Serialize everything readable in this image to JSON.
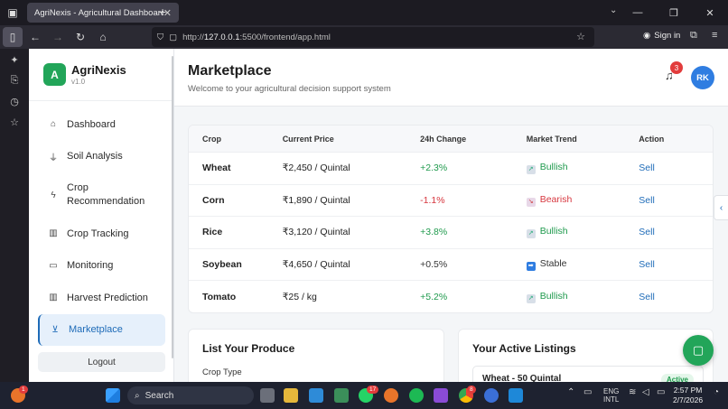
{
  "browser": {
    "tab_title": "AgriNexis - Agricultural Dashboard",
    "url_prefix": "http://",
    "url_host": "127.0.0.1",
    "url_path": ":5500/frontend/app.html",
    "signin_label": "Sign in"
  },
  "app": {
    "brand_initial": "A",
    "brand_name": "AgriNexis",
    "brand_version": "v1.0",
    "menu": [
      {
        "label": "Dashboard",
        "icon": "dashboard-icon"
      },
      {
        "label": "Soil Analysis",
        "icon": "soil-icon"
      },
      {
        "label": "Crop Recommendation",
        "icon": "lightning-icon"
      },
      {
        "label": "Crop Tracking",
        "icon": "bar-chart-icon"
      },
      {
        "label": "Monitoring",
        "icon": "camera-icon"
      },
      {
        "label": "Harvest Prediction",
        "icon": "bar-chart-icon"
      },
      {
        "label": "Marketplace",
        "icon": "cart-icon"
      }
    ],
    "logout_label": "Logout"
  },
  "header": {
    "title": "Marketplace",
    "subtitle": "Welcome to your agricultural decision support system",
    "notification_count": "3",
    "avatar_initials": "RK"
  },
  "market_table": {
    "columns": [
      "Crop",
      "Current Price",
      "24h Change",
      "Market Trend",
      "Action"
    ],
    "rows": [
      {
        "crop": "Wheat",
        "price": "₹2,450 / Quintal",
        "change": "+2.3%",
        "trend": "Bullish",
        "action": "Sell"
      },
      {
        "crop": "Corn",
        "price": "₹1,890 / Quintal",
        "change": "-1.1%",
        "trend": "Bearish",
        "action": "Sell"
      },
      {
        "crop": "Rice",
        "price": "₹3,120 / Quintal",
        "change": "+3.8%",
        "trend": "Bullish",
        "action": "Sell"
      },
      {
        "crop": "Soybean",
        "price": "₹4,650 / Quintal",
        "change": "+0.5%",
        "trend": "Stable",
        "action": "Sell"
      },
      {
        "crop": "Tomato",
        "price": "₹25 / kg",
        "change": "+5.2%",
        "trend": "Bullish",
        "action": "Sell"
      }
    ]
  },
  "list_produce": {
    "title": "List Your Produce",
    "crop_type_label": "Crop Type"
  },
  "active_listings": {
    "title": "Your Active Listings",
    "first_listing": "Wheat - 50 Quintal",
    "first_status": "Active"
  },
  "taskbar": {
    "search_placeholder": "Search",
    "lang": "ENG",
    "region": "INTL",
    "time": "2:57 PM",
    "date": "2/7/2026",
    "firefox_badge": "1",
    "whatsapp_badge": "17",
    "chrome_badge": "8"
  },
  "colors": {
    "brand_green": "#22a559",
    "accent_blue": "#1e6bb8",
    "positive": "#1f9a4d",
    "negative": "#d7373f"
  }
}
